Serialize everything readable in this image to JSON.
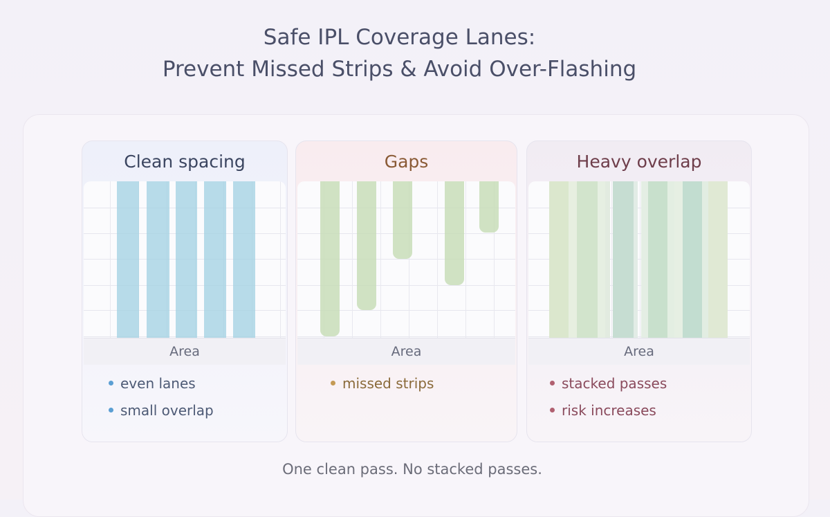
{
  "title_line1": "Safe IPL Coverage Lanes:",
  "title_line2": "Prevent Missed Strips & Avoid Over-Flashing",
  "panels": [
    {
      "heading": "Clean spacing",
      "axis_label": "Area",
      "bullets": [
        "even lanes",
        "small overlap"
      ],
      "heading_color": "#3b4560",
      "bullet_color": "#5b9fd3",
      "text_color": "#4d5a75"
    },
    {
      "heading": "Gaps",
      "axis_label": "Area",
      "bullets": [
        "missed strips"
      ],
      "heading_color": "#8a5a35",
      "bullet_color": "#c49a55",
      "text_color": "#8a6a3a"
    },
    {
      "heading": "Heavy overlap",
      "axis_label": "Area",
      "bullets": [
        "stacked passes",
        "risk increases"
      ],
      "heading_color": "#6e3d4a",
      "bullet_color": "#b06070",
      "text_color": "#8a4a5c"
    }
  ],
  "gaps_strip_coverage": [
    1.0,
    0.83,
    0.5,
    0.67,
    0.33
  ],
  "footer": "One clean pass. No stacked passes."
}
